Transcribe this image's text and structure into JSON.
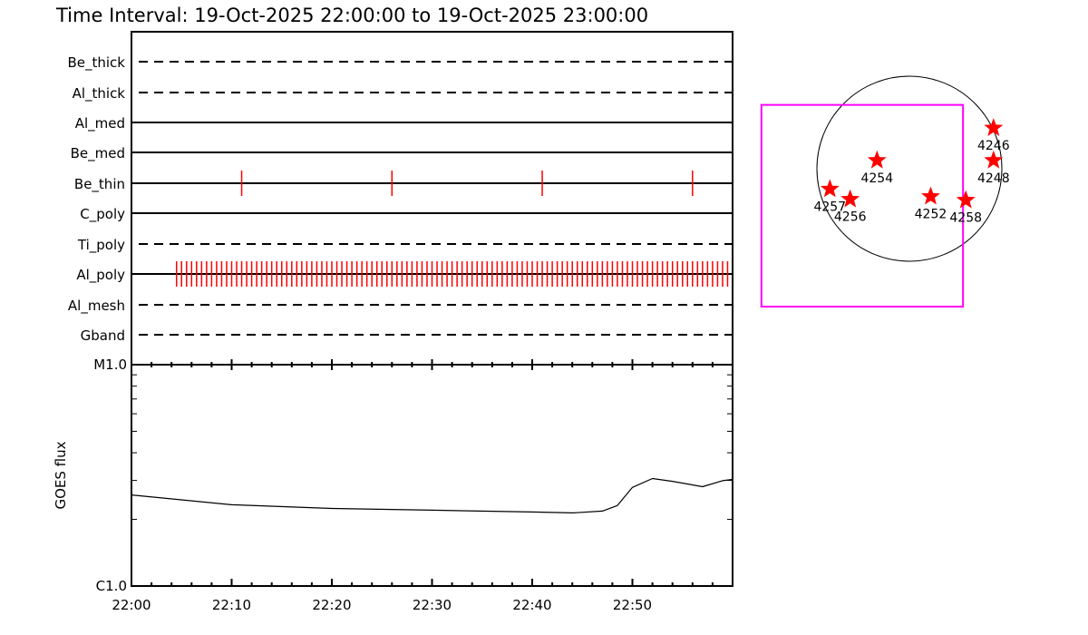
{
  "title": "Time Interval: 19-Oct-2025 22:00:00 to 19-Oct-2025 23:00:00",
  "chart_data": [
    {
      "type": "event-timeline",
      "x_range": [
        "22:00",
        "23:00"
      ],
      "rows": [
        {
          "name": "Be_thick",
          "style": "dashed",
          "events": []
        },
        {
          "name": "Al_thick",
          "style": "dashed",
          "events": []
        },
        {
          "name": "Al_med",
          "style": "solid",
          "events": []
        },
        {
          "name": "Be_med",
          "style": "solid",
          "events": []
        },
        {
          "name": "Be_thin",
          "style": "solid",
          "events": [
            "22:11:00",
            "22:26:00",
            "22:41:00",
            "22:56:00"
          ]
        },
        {
          "name": "C_poly",
          "style": "solid",
          "events": []
        },
        {
          "name": "Ti_poly",
          "style": "dashed",
          "events": []
        },
        {
          "name": "Al_poly",
          "style": "solid",
          "events": [
            "22:04:30",
            "22:05:00",
            "22:05:30",
            "22:06:00",
            "22:06:30",
            "22:07:00",
            "22:07:30",
            "22:08:00",
            "22:08:30",
            "22:09:00",
            "22:09:30",
            "22:10:00",
            "22:10:30",
            "22:11:00",
            "22:11:30",
            "22:12:00",
            "22:12:30",
            "22:13:00",
            "22:13:30",
            "22:14:00",
            "22:14:30",
            "22:15:00",
            "22:15:30",
            "22:16:00",
            "22:16:30",
            "22:17:00",
            "22:17:30",
            "22:18:00",
            "22:18:30",
            "22:19:00",
            "22:19:30",
            "22:20:00",
            "22:20:30",
            "22:21:00",
            "22:21:30",
            "22:22:00",
            "22:22:30",
            "22:23:00",
            "22:23:30",
            "22:24:00",
            "22:24:30",
            "22:25:00",
            "22:25:30",
            "22:26:00",
            "22:26:30",
            "22:27:00",
            "22:27:30",
            "22:28:00",
            "22:28:30",
            "22:29:00",
            "22:29:30",
            "22:30:00",
            "22:30:30",
            "22:31:00",
            "22:31:30",
            "22:32:00",
            "22:32:30",
            "22:33:00",
            "22:33:30",
            "22:34:00",
            "22:34:30",
            "22:35:00",
            "22:35:30",
            "22:36:00",
            "22:36:30",
            "22:37:00",
            "22:37:30",
            "22:38:00",
            "22:38:30",
            "22:39:00",
            "22:39:30",
            "22:40:00",
            "22:40:30",
            "22:41:00",
            "22:41:30",
            "22:42:00",
            "22:42:30",
            "22:43:00",
            "22:43:30",
            "22:44:00",
            "22:44:30",
            "22:45:00",
            "22:45:30",
            "22:46:00",
            "22:46:30",
            "22:47:00",
            "22:47:30",
            "22:48:00",
            "22:48:30",
            "22:49:00",
            "22:49:30",
            "22:50:00",
            "22:50:30",
            "22:51:00",
            "22:51:30",
            "22:52:00",
            "22:52:30",
            "22:53:00",
            "22:53:30",
            "22:54:00",
            "22:54:30",
            "22:55:00",
            "22:55:30",
            "22:56:00",
            "22:56:30",
            "22:57:00",
            "22:57:30",
            "22:58:00",
            "22:58:30",
            "22:59:00",
            "22:59:30"
          ]
        },
        {
          "name": "Al_mesh",
          "style": "dashed",
          "events": []
        },
        {
          "name": "Gband",
          "style": "dashed",
          "events": []
        }
      ],
      "event_color": "#ff0000"
    },
    {
      "type": "line",
      "ylabel": "GOES flux",
      "yscale": "log",
      "ylim": [
        1e-06,
        1e-05
      ],
      "ytick_labels": [
        "C1.0",
        "M1.0"
      ],
      "xtick_labels": [
        "22:00",
        "22:10",
        "22:20",
        "22:30",
        "22:40",
        "22:50"
      ],
      "x_range": [
        "22:00",
        "23:00"
      ],
      "x": [
        "22:00",
        "22:10",
        "22:20",
        "22:30",
        "22:40",
        "22:44",
        "22:47",
        "22:48:30",
        "22:50",
        "22:52",
        "22:54",
        "22:57",
        "22:59",
        "23:00"
      ],
      "y": [
        2.58e-06,
        2.33e-06,
        2.24e-06,
        2.2e-06,
        2.16e-06,
        2.14e-06,
        2.18e-06,
        2.31e-06,
        2.79e-06,
        3.06e-06,
        2.97e-06,
        2.81e-06,
        2.99e-06,
        3.03e-06
      ],
      "line_color": "#000000"
    },
    {
      "type": "scatter",
      "description_markers": "star",
      "marker_color": "#ff0000",
      "box_color": "#ff00ff",
      "points": [
        {
          "label": "4246",
          "x": 0.91,
          "y": 0.44
        },
        {
          "label": "4248",
          "x": 0.91,
          "y": 0.09
        },
        {
          "label": "4254",
          "x": -0.35,
          "y": 0.09
        },
        {
          "label": "4257",
          "x": -0.86,
          "y": -0.22
        },
        {
          "label": "4256",
          "x": -0.64,
          "y": -0.33
        },
        {
          "label": "4252",
          "x": 0.23,
          "y": -0.3
        },
        {
          "label": "4258",
          "x": 0.61,
          "y": -0.34
        }
      ],
      "box": {
        "x": [
          -1.6,
          0.58
        ],
        "y": [
          0.69,
          -1.49
        ]
      }
    }
  ]
}
